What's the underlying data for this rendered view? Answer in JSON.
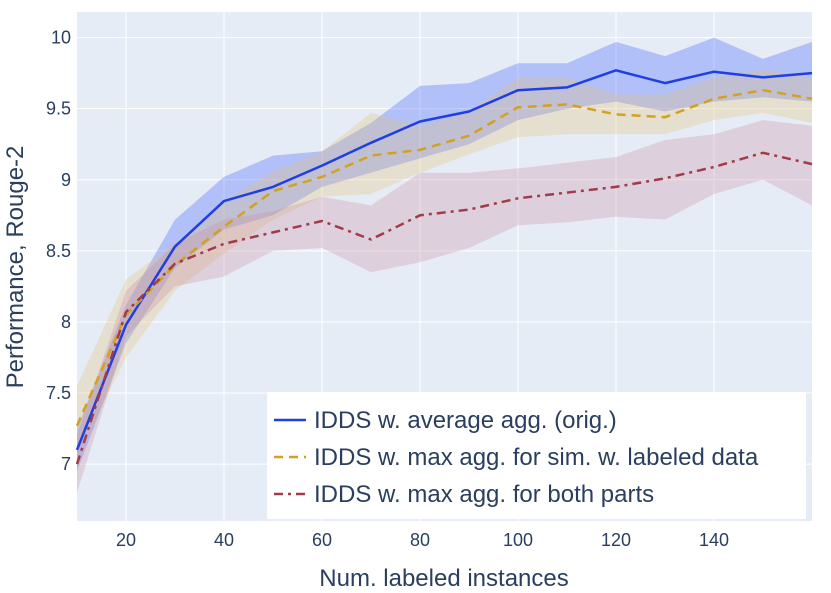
{
  "chart_data": {
    "type": "line",
    "xlabel": "Num. labeled instances",
    "ylabel": "Performance, Rouge-2",
    "xlim": [
      10,
      160
    ],
    "ylim": [
      6.6,
      10.18
    ],
    "x_ticks": [
      20,
      40,
      60,
      80,
      100,
      120,
      140
    ],
    "y_ticks": [
      7,
      7.5,
      8,
      8.5,
      9,
      9.5,
      10
    ],
    "x_tick_labels": [
      "20",
      "40",
      "60",
      "80",
      "100",
      "120",
      "140"
    ],
    "y_tick_labels": [
      "7",
      "7.5",
      "8",
      "8.5",
      "9",
      "9.5",
      "10"
    ],
    "grid": true,
    "legend_position": "bottom-right",
    "x": [
      10,
      20,
      30,
      40,
      50,
      60,
      70,
      80,
      90,
      100,
      110,
      120,
      130,
      140,
      150,
      160
    ],
    "series": [
      {
        "name": "IDDS w. average agg. (orig.)",
        "color": "#1f3fe0",
        "dash": "solid",
        "values": [
          7.1,
          7.98,
          8.53,
          8.85,
          8.95,
          9.1,
          9.26,
          9.41,
          9.48,
          9.63,
          9.65,
          9.77,
          9.68,
          9.76,
          9.72,
          9.75
        ],
        "lower": [
          6.95,
          7.85,
          8.38,
          8.65,
          8.75,
          8.95,
          9.05,
          9.15,
          9.25,
          9.42,
          9.5,
          9.55,
          9.48,
          9.55,
          9.58,
          9.55
        ],
        "upper": [
          7.25,
          8.12,
          8.72,
          9.02,
          9.17,
          9.2,
          9.4,
          9.66,
          9.68,
          9.82,
          9.82,
          9.97,
          9.87,
          10.0,
          9.85,
          9.97
        ],
        "band_color": "#3b5bff"
      },
      {
        "name": "IDDS w. max agg. for sim. w. labeled data",
        "color": "#d4a020",
        "dash": "dash",
        "values": [
          7.27,
          8.05,
          8.4,
          8.67,
          8.92,
          9.02,
          9.17,
          9.21,
          9.31,
          9.51,
          9.53,
          9.46,
          9.44,
          9.57,
          9.63,
          9.57
        ],
        "lower": [
          7.05,
          7.75,
          8.22,
          8.48,
          8.72,
          8.88,
          8.9,
          9.05,
          9.18,
          9.3,
          9.32,
          9.32,
          9.32,
          9.42,
          9.47,
          9.4
        ],
        "upper": [
          7.55,
          8.3,
          8.55,
          8.85,
          9.06,
          9.2,
          9.47,
          9.38,
          9.48,
          9.72,
          9.72,
          9.6,
          9.6,
          9.72,
          9.78,
          9.72
        ],
        "band_color": "#e3c078"
      },
      {
        "name": "IDDS w. max agg. for both parts",
        "color": "#a23a48",
        "dash": "dashdot",
        "values": [
          7.0,
          8.07,
          8.41,
          8.55,
          8.63,
          8.71,
          8.58,
          8.75,
          8.79,
          8.87,
          8.91,
          8.95,
          9.01,
          9.09,
          9.19,
          9.11
        ],
        "lower": [
          6.8,
          7.9,
          8.25,
          8.32,
          8.5,
          8.52,
          8.35,
          8.42,
          8.52,
          8.68,
          8.7,
          8.74,
          8.72,
          8.9,
          9.0,
          8.82
        ],
        "upper": [
          7.2,
          8.22,
          8.55,
          8.72,
          8.78,
          8.88,
          8.82,
          9.05,
          9.05,
          9.08,
          9.12,
          9.16,
          9.28,
          9.32,
          9.42,
          9.38
        ],
        "band_color": "#c9909e"
      }
    ]
  }
}
